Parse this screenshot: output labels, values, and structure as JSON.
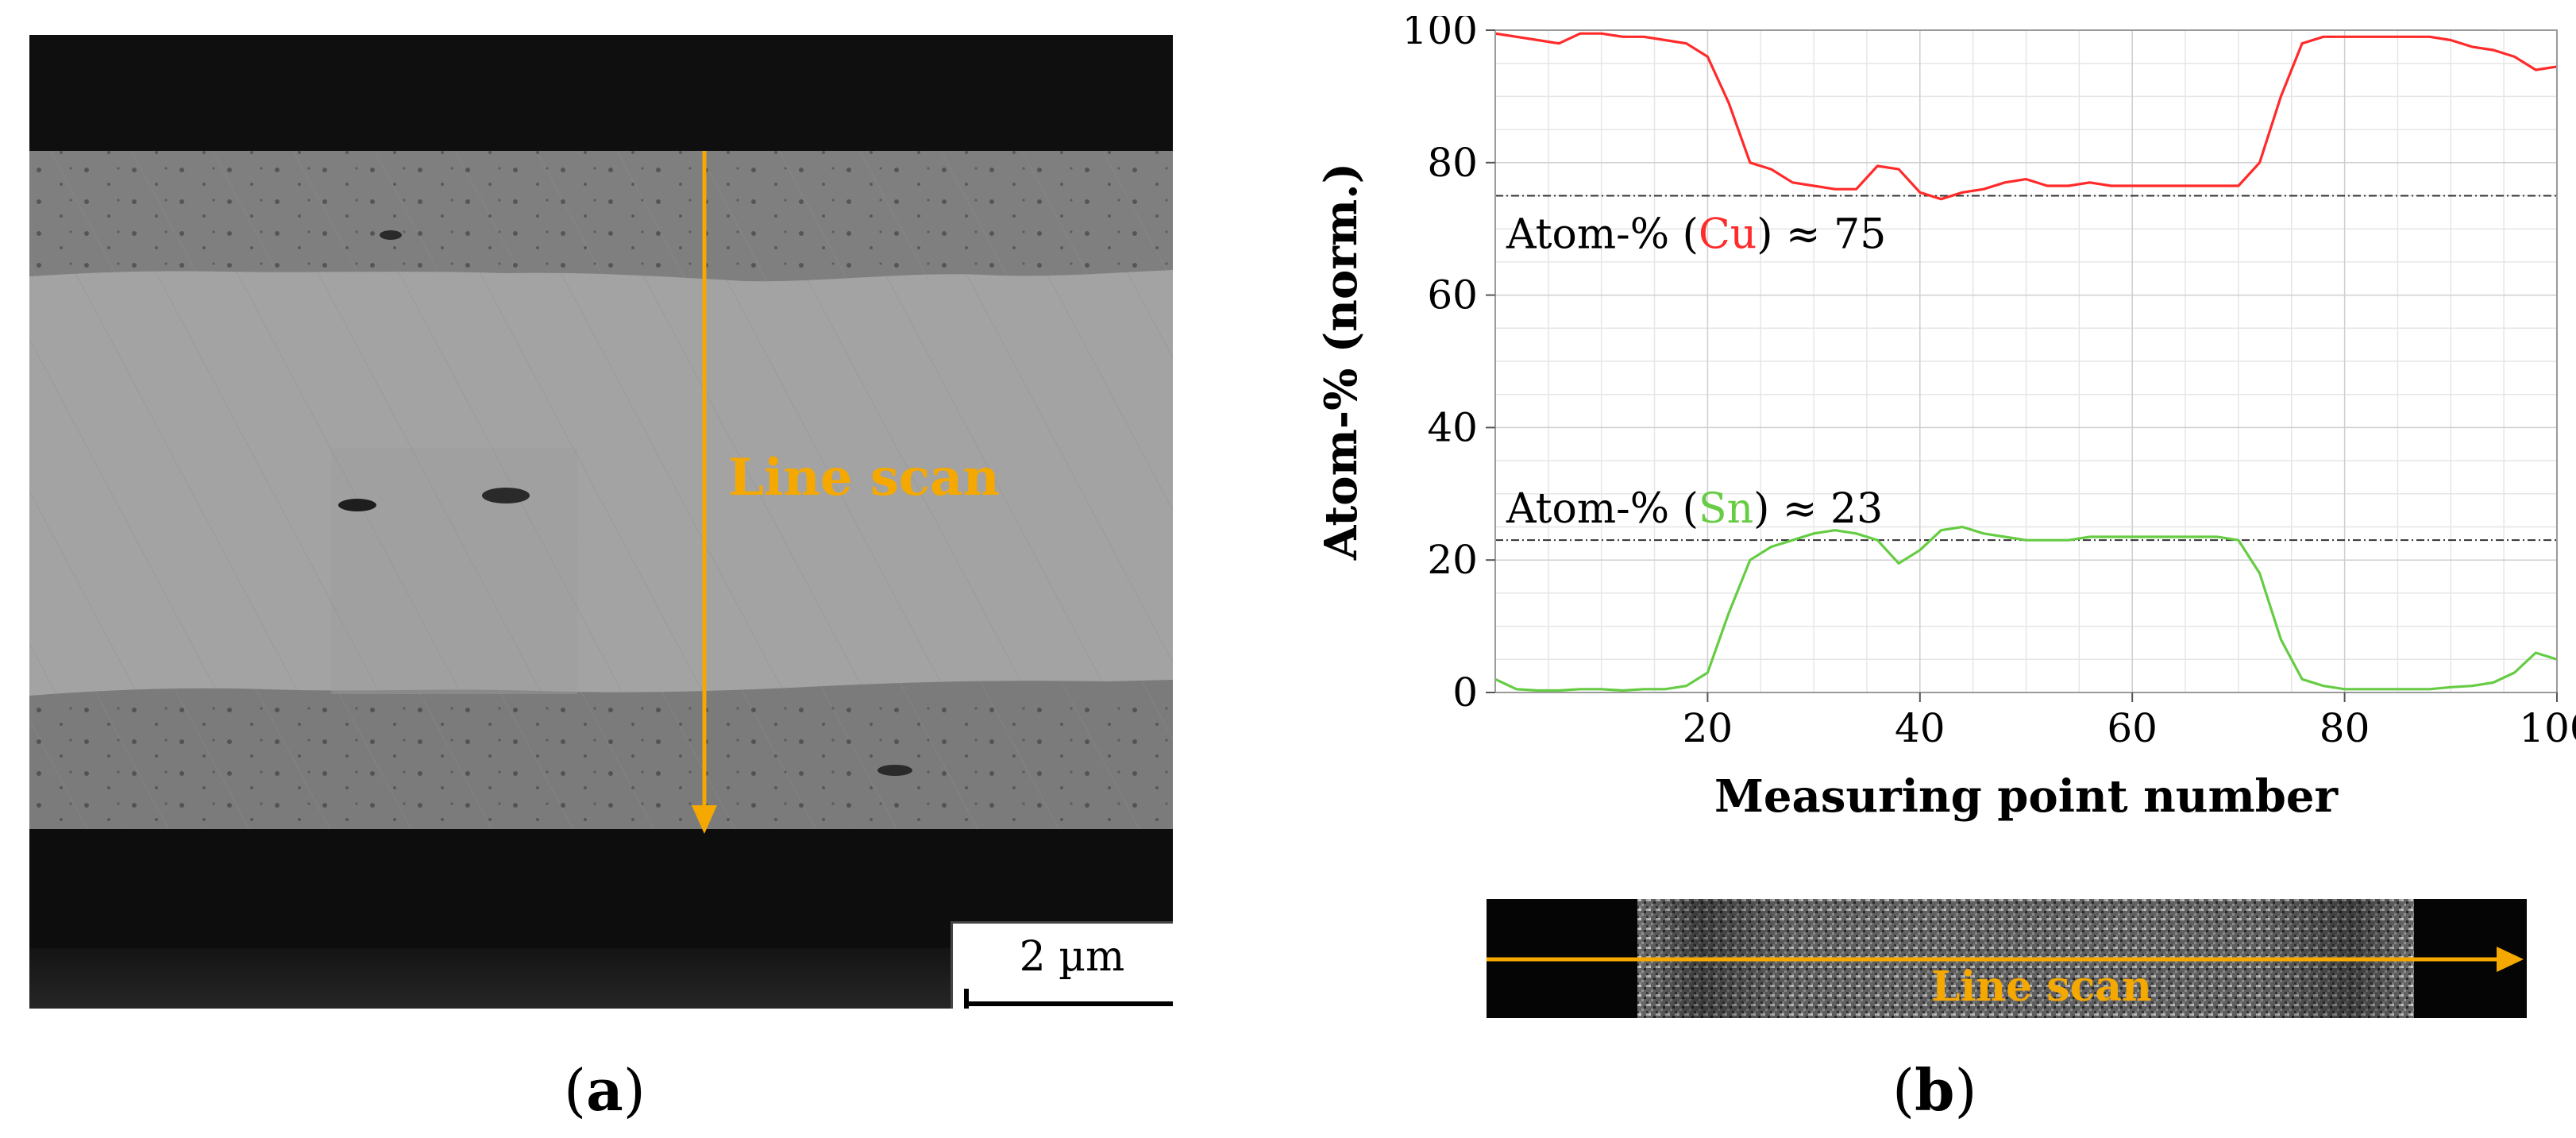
{
  "panel_a": {
    "line_scan_label": "Line scan",
    "scale_bar_label": "2 µm",
    "caption_open": "(",
    "caption_letter": "a",
    "caption_close": ")"
  },
  "panel_b": {
    "caption_open": "(",
    "caption_letter": "b",
    "caption_close": ")",
    "strip_label": "Line scan"
  },
  "colors": {
    "cu": "#ff2a2a",
    "sn": "#66cc44",
    "accent": "#f5a800",
    "ref_line": "#333333"
  },
  "chart_data": {
    "type": "line",
    "xlabel": "Measuring point number",
    "ylabel": "Atom-% (norm.)",
    "xlim": [
      0,
      100
    ],
    "ylim": [
      0,
      100
    ],
    "x_ticks": [
      20,
      40,
      60,
      80,
      100
    ],
    "y_ticks": [
      0,
      20,
      40,
      60,
      80,
      100
    ],
    "grid": true,
    "annotations": [
      {
        "prefix": "Atom-% (",
        "element": "Cu",
        "suffix": ") ≈ 75",
        "ref_y": 75,
        "color_key": "cu"
      },
      {
        "prefix": "Atom-% (",
        "element": "Sn",
        "suffix": ") ≈ 23",
        "ref_y": 23,
        "color_key": "sn"
      }
    ],
    "x": [
      0,
      2,
      4,
      6,
      8,
      10,
      12,
      14,
      16,
      18,
      20,
      22,
      24,
      26,
      28,
      30,
      32,
      34,
      36,
      38,
      40,
      42,
      44,
      46,
      48,
      50,
      52,
      54,
      56,
      58,
      60,
      62,
      64,
      66,
      68,
      70,
      72,
      74,
      76,
      78,
      80,
      82,
      84,
      86,
      88,
      90,
      92,
      94,
      96,
      98,
      100
    ],
    "series": [
      {
        "name": "Cu",
        "color_key": "cu",
        "values": [
          99.5,
          99,
          98.5,
          98,
          99.5,
          99.5,
          99,
          99,
          98.5,
          98,
          96,
          89,
          80,
          79,
          77,
          76.5,
          76,
          76,
          79.5,
          79,
          75.5,
          74.5,
          75.5,
          76,
          77,
          77.5,
          76.5,
          76.5,
          77,
          76.5,
          76.5,
          76.5,
          76.5,
          76.5,
          76.5,
          76.5,
          80,
          90,
          98,
          99,
          99,
          99,
          99,
          99,
          99,
          98.5,
          97.5,
          97,
          96,
          94,
          94.5
        ]
      },
      {
        "name": "Sn",
        "color_key": "sn",
        "values": [
          2,
          0.5,
          0.3,
          0.3,
          0.5,
          0.5,
          0.3,
          0.5,
          0.5,
          1,
          3,
          12,
          20,
          22,
          23,
          24,
          24.5,
          24,
          23,
          19.5,
          21.5,
          24.5,
          25,
          24,
          23.5,
          23,
          23,
          23,
          23.5,
          23.5,
          23.5,
          23.5,
          23.5,
          23.5,
          23.5,
          23,
          18,
          8,
          2,
          1,
          0.5,
          0.5,
          0.5,
          0.5,
          0.5,
          0.8,
          1,
          1.5,
          3,
          6,
          5
        ]
      }
    ]
  }
}
